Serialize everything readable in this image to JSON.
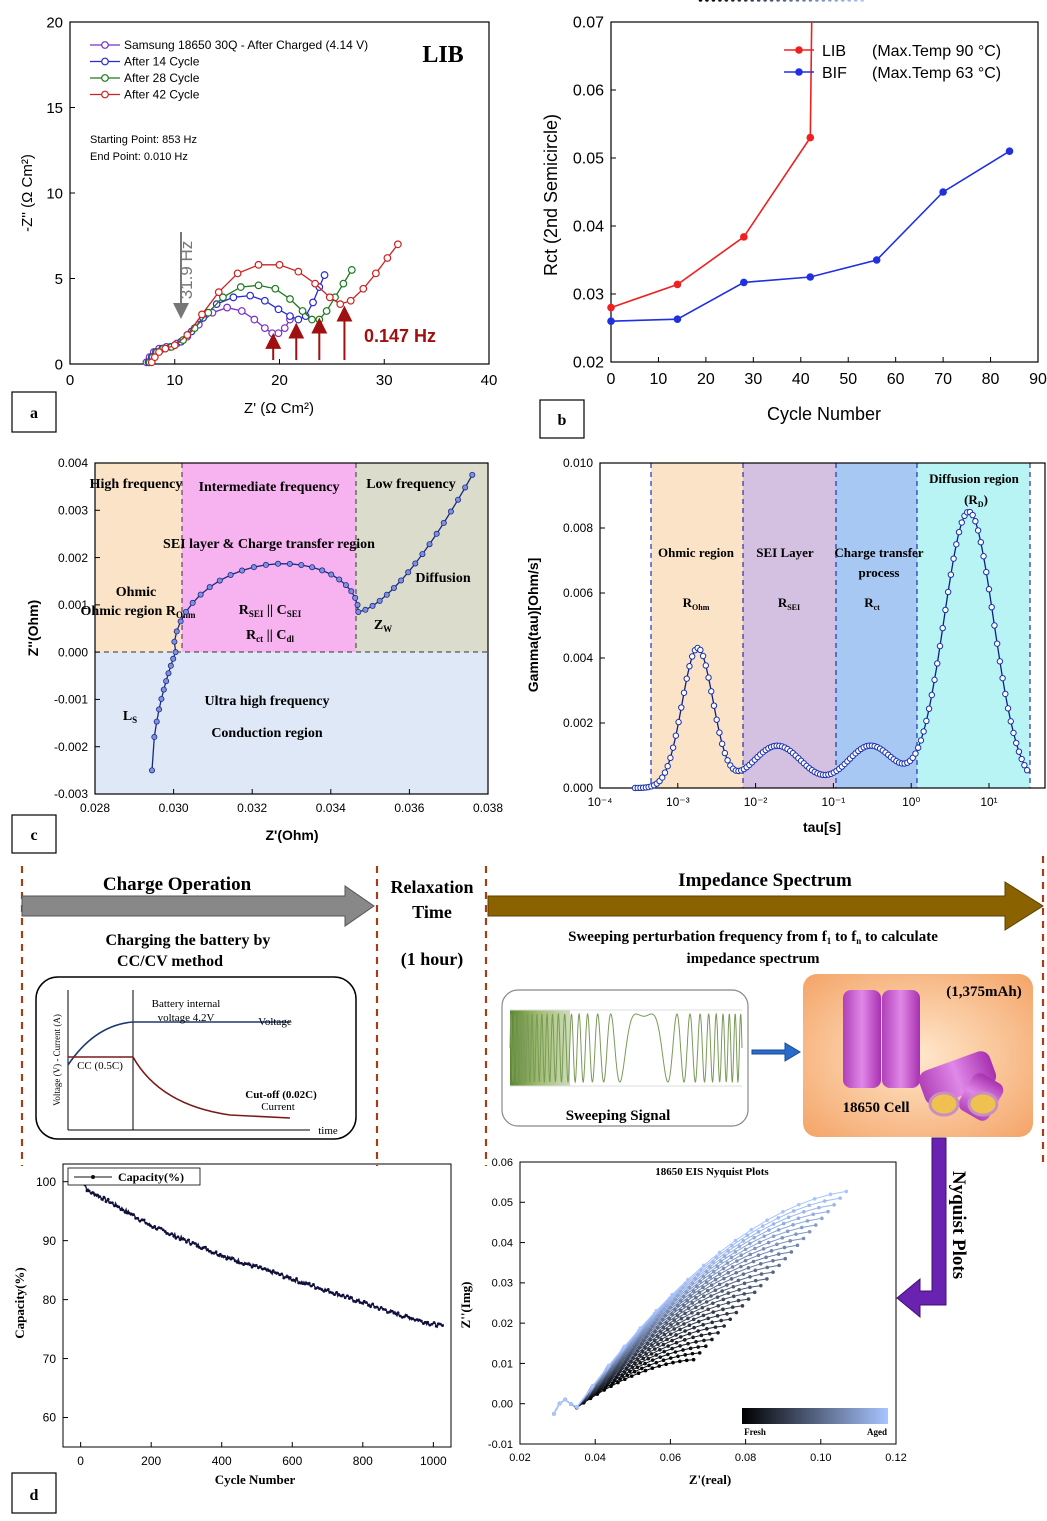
{
  "panel_labels": {
    "a": "a",
    "b": "b",
    "c": "c",
    "d": "d"
  },
  "chart_data": [
    {
      "id": "a",
      "type": "line",
      "title": "LIB",
      "xlabel": "Z' (Ω Cm²)",
      "ylabel": "-Z'' (Ω Cm²)",
      "xlim": [
        0,
        40
      ],
      "ylim": [
        0,
        20
      ],
      "xticks": [
        0,
        10,
        20,
        30,
        40
      ],
      "yticks": [
        0,
        5,
        10,
        15,
        20
      ],
      "series": [
        {
          "name": "Samsung 18650 30Q - After Charged (4.14 V)",
          "color": "#7a2fc7",
          "x": [
            7.3,
            7.6,
            8.0,
            8.5,
            9.2,
            10.2,
            11.2,
            12.3,
            13.6,
            15.0,
            16.4,
            17.6,
            18.6,
            19.3,
            19.9,
            20.5,
            21.0
          ],
          "y": [
            0.1,
            0.4,
            0.7,
            0.9,
            1.0,
            1.2,
            1.6,
            2.3,
            3.0,
            3.3,
            3.1,
            2.6,
            2.1,
            1.8,
            1.8,
            2.1,
            2.6
          ]
        },
        {
          "name": "After 14 Cycle",
          "color": "#2a2ad0",
          "x": [
            7.5,
            7.8,
            8.2,
            8.8,
            9.6,
            10.6,
            11.6,
            12.7,
            14.0,
            15.6,
            17.2,
            18.6,
            19.9,
            21.0,
            21.8,
            22.5,
            23.2,
            23.8,
            24.3
          ],
          "y": [
            0.1,
            0.4,
            0.7,
            0.9,
            1.0,
            1.3,
            1.9,
            2.7,
            3.5,
            3.9,
            4.0,
            3.7,
            3.2,
            2.8,
            2.6,
            2.8,
            3.6,
            4.5,
            5.2
          ]
        },
        {
          "name": "After 28 Cycle",
          "color": "#1e7a1e",
          "x": [
            7.6,
            7.9,
            8.3,
            8.9,
            9.7,
            10.8,
            11.9,
            13.2,
            14.6,
            16.3,
            18.0,
            19.6,
            21.0,
            22.2,
            23.1,
            23.8,
            24.5,
            25.3,
            26.1,
            26.9
          ],
          "y": [
            0.1,
            0.4,
            0.7,
            0.9,
            1.0,
            1.4,
            2.1,
            3.0,
            3.9,
            4.5,
            4.6,
            4.4,
            3.8,
            3.1,
            2.6,
            2.6,
            3.1,
            3.9,
            4.7,
            5.5
          ]
        },
        {
          "name": "After 42 Cycle",
          "color": "#cc2222",
          "x": [
            7.8,
            8.1,
            8.5,
            9.1,
            10.0,
            11.2,
            12.6,
            14.2,
            16.0,
            18.0,
            20.0,
            21.8,
            23.4,
            24.8,
            25.8,
            26.8,
            28.0,
            29.2,
            30.3,
            31.3
          ],
          "y": [
            0.1,
            0.4,
            0.7,
            0.9,
            1.1,
            1.7,
            2.9,
            4.2,
            5.3,
            5.8,
            5.8,
            5.4,
            4.7,
            3.9,
            3.5,
            3.7,
            4.4,
            5.3,
            6.2,
            7.0
          ]
        }
      ],
      "annotations": {
        "start": "Starting Point: 853 Hz",
        "end": "End Point: 0.010 Hz",
        "freq1": "31.9 Hz",
        "freq2": "0.147 Hz"
      }
    },
    {
      "id": "b",
      "type": "line",
      "xlabel": "Cycle Number",
      "ylabel": "Rct (2nd Semicircle)",
      "xlim": [
        0,
        90
      ],
      "ylim": [
        0.02,
        0.07
      ],
      "xticks": [
        0,
        10,
        20,
        30,
        40,
        50,
        60,
        70,
        80,
        90
      ],
      "yticks": [
        0.02,
        0.03,
        0.04,
        0.05,
        0.06,
        0.07
      ],
      "series": [
        {
          "name": "LIB",
          "note": "(Max.Temp 90 °C)",
          "color": "#f02020",
          "x": [
            0,
            14,
            28,
            42
          ],
          "y": [
            0.028,
            0.0314,
            0.0384,
            0.053
          ]
        },
        {
          "name": "BIF",
          "note": "(Max.Temp 63 °C)",
          "color": "#2030e0",
          "x": [
            0,
            14,
            28,
            42,
            56,
            70,
            84
          ],
          "y": [
            0.026,
            0.0263,
            0.0317,
            0.0325,
            0.035,
            0.045,
            0.051
          ]
        }
      ]
    },
    {
      "id": "c1",
      "type": "line",
      "xlabel": "Z'(Ohm)",
      "ylabel": "Z''(Ohm)",
      "xlim": [
        0.028,
        0.038
      ],
      "ylim": [
        -0.003,
        0.004
      ],
      "xticks": [
        "0.028",
        "0.030",
        "0.032",
        "0.034",
        "0.036",
        "0.038"
      ],
      "yticks": [
        "-0.003",
        "-0.002",
        "-0.001",
        "0.000",
        "0.001",
        "0.002",
        "0.003",
        "0.004"
      ],
      "regions": [
        {
          "name": "High frequency",
          "sub": "Ohmic region R",
          "subscript": "Ohm"
        },
        {
          "name": "Intermediate frequency",
          "sub": "SEI layer & Charge transfer region",
          "eq1": "R",
          "eq1s": "SEI",
          "eq1b": " || C",
          "eq1bs": "SEI",
          "eq2": "R",
          "eq2s": "ct",
          "eq2b": " || C",
          "eq2bs": "dl"
        },
        {
          "name": "Low frequency",
          "sub": "Diffusion region",
          "eq": "Z",
          "eqs": "W"
        },
        {
          "name": "Ultra high frequency",
          "sub": "Conduction region",
          "eq": "L",
          "eqs": "S"
        }
      ]
    },
    {
      "id": "c2",
      "type": "line",
      "xlabel": "tau[s]",
      "ylabel": "Gamma(tau)[Ohm/s]",
      "xscale": "log",
      "xlim": [
        0.0001,
        50
      ],
      "ylim": [
        0,
        0.01
      ],
      "xticks": [
        "10⁻⁴",
        "10⁻³",
        "10⁻²",
        "10⁻¹",
        "10⁰",
        "10¹"
      ],
      "yticks": [
        "0.000",
        "0.002",
        "0.004",
        "0.006",
        "0.008",
        "0.010"
      ],
      "peaks": [
        {
          "tau": 0.0018,
          "g": 0.0043
        },
        {
          "tau": 0.019,
          "g": 0.0013
        },
        {
          "tau": 0.3,
          "g": 0.0013
        },
        {
          "tau": 5.5,
          "g": 0.0085
        }
      ],
      "regions": [
        {
          "name": "Ohmic region",
          "eq": "R",
          "eqs": "Ohm"
        },
        {
          "name": "SEI Layer",
          "eq": "R",
          "eqs": "SEI"
        },
        {
          "name": "Charge transfer process",
          "eq": "R",
          "eqs": "ct"
        },
        {
          "name": "Diffusion region",
          "eq": "(R",
          "eqs": "D",
          "eqe": ")"
        }
      ]
    },
    {
      "id": "d1",
      "type": "line",
      "xlabel": "Cycle Number",
      "ylabel": "Capacity(%)",
      "xlim": [
        -50,
        1050
      ],
      "ylim": [
        55,
        103
      ],
      "xticks": [
        0,
        200,
        400,
        600,
        800,
        1000
      ],
      "yticks": [
        60,
        70,
        80,
        90,
        100
      ],
      "series": [
        {
          "name": "Capacity(%)",
          "x": [
            0,
            20,
            100,
            200,
            300,
            400,
            500,
            600,
            700,
            800,
            900,
            1000,
            1030
          ],
          "y": [
            101,
            98.5,
            96,
            92.5,
            90,
            87.5,
            85.5,
            83.5,
            81.5,
            79.5,
            77.5,
            75.8,
            75.5
          ]
        }
      ]
    },
    {
      "id": "d2",
      "type": "line",
      "title": "18650 EIS Nyquist Plots",
      "xlabel": "Z'(real)",
      "ylabel": "Z''(Img)",
      "xlim": [
        0.02,
        0.12
      ],
      "ylim": [
        -0.01,
        0.06
      ],
      "xticks": [
        "0.02",
        "0.04",
        "0.06",
        "0.08",
        "0.10",
        "0.12"
      ],
      "yticks": [
        "-0.01",
        "0.00",
        "0.01",
        "0.02",
        "0.03",
        "0.04",
        "0.05",
        "0.06"
      ],
      "colorbar": {
        "low": "Fresh",
        "high": "Aged"
      }
    }
  ],
  "diagram": {
    "charge_operation": "Charge Operation",
    "charging_line1": "Charging the battery by",
    "charging_line2": "CC/CV method",
    "inset_internal1": "Battery internal",
    "inset_internal2": "voltage 4.2V",
    "inset_voltage": "Voltage",
    "inset_cc": "CC (0.5C)",
    "inset_cutoff": "Cut-off (0.02C)",
    "inset_current": "Current",
    "inset_time": "time",
    "inset_ylabel": "Voltage (V) - Current (A)",
    "relax1": "Relaxation",
    "relax2": "Time",
    "relax3": "(1 hour)",
    "impedance": "Impedance Spectrum",
    "sweep1": "Sweeping perturbation frequency from f",
    "sweep1s": "1",
    "sweep1b": " to f",
    "sweep1bs": "n",
    "sweep1c": " to calculate",
    "sweep2": "impedance spectrum",
    "sweeping_signal": "Sweeping Signal",
    "cell_cap": "(1,375mAh)",
    "cell_label": "18650 Cell",
    "nyquist": "Nyquist Plots"
  }
}
